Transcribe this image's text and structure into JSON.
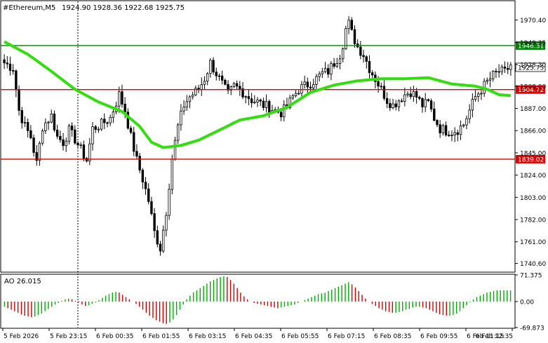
{
  "header": {
    "symbol": "#Ethereum,M5",
    "ohlc": "1924.90 1928.36 1922.68 1925.75",
    "ao_label": "AO 26.015"
  },
  "colors": {
    "bull": "#008000",
    "bear": "#000000",
    "ma": "#33dd11",
    "red_line": "#dd0000",
    "green_line": "#008000",
    "ao_up": "#00aa00",
    "ao_down": "#cc0000"
  },
  "chart_data": [
    {
      "type": "candlestick",
      "ylim": [
        1733,
        1988
      ],
      "y_ticks": [
        "1970.40",
        "1949.35",
        "1928.30",
        "1908.00",
        "1887.00",
        "1866.00",
        "1845.00",
        "1824.00",
        "1803.00",
        "1782.00",
        "1761.00",
        "1740.60"
      ],
      "y_tick_values": [
        1970.4,
        1949.35,
        1928.3,
        1908.0,
        1887.0,
        1866.0,
        1845.0,
        1824.0,
        1803.0,
        1782.0,
        1761.0,
        1740.6
      ],
      "x_ticks": [
        "5 Feb 2026",
        "5 Feb 23:15",
        "6 Feb 00:35",
        "6 Feb 01:55",
        "6 Feb 03:15",
        "6 Feb 04:35",
        "6 Feb 05:55",
        "6 Feb 07:15",
        "6 Feb 08:35",
        "6 Feb 09:55",
        "6 Feb 11:15",
        "6 Feb 12:35"
      ],
      "levels": [
        {
          "value": 1946.31,
          "label": "1946.31",
          "color": "green"
        },
        {
          "value": 1904.72,
          "label": "1904.72",
          "color": "red"
        },
        {
          "value": 1839.02,
          "label": "1839.02",
          "color": "red"
        }
      ],
      "current_price": {
        "value": 1925.75,
        "label": "1925.75"
      },
      "vertical_marker_index": 25,
      "price_path": [
        [
          0,
          1930
        ],
        [
          3,
          1925
        ],
        [
          5,
          1885
        ],
        [
          7,
          1870
        ],
        [
          9,
          1860
        ],
        [
          11,
          1835
        ],
        [
          13,
          1870
        ],
        [
          16,
          1880
        ],
        [
          18,
          1860
        ],
        [
          20,
          1855
        ],
        [
          22,
          1866
        ],
        [
          24,
          1858
        ],
        [
          26,
          1848
        ],
        [
          28,
          1838
        ],
        [
          30,
          1868
        ],
        [
          33,
          1872
        ],
        [
          36,
          1878
        ],
        [
          39,
          1900
        ],
        [
          41,
          1885
        ],
        [
          43,
          1860
        ],
        [
          45,
          1838
        ],
        [
          47,
          1820
        ],
        [
          49,
          1800
        ],
        [
          51,
          1770
        ],
        [
          53,
          1755
        ],
        [
          55,
          1790
        ],
        [
          57,
          1840
        ],
        [
          59,
          1870
        ],
        [
          61,
          1890
        ],
        [
          63,
          1898
        ],
        [
          66,
          1905
        ],
        [
          68,
          1915
        ],
        [
          70,
          1930
        ],
        [
          72,
          1920
        ],
        [
          74,
          1910
        ],
        [
          76,
          1900
        ],
        [
          78,
          1908
        ],
        [
          80,
          1905
        ],
        [
          82,
          1900
        ],
        [
          84,
          1895
        ],
        [
          86,
          1893
        ],
        [
          88,
          1890
        ],
        [
          90,
          1888
        ],
        [
          92,
          1885
        ],
        [
          94,
          1883
        ],
        [
          96,
          1888
        ],
        [
          98,
          1898
        ],
        [
          100,
          1905
        ],
        [
          102,
          1908
        ],
        [
          104,
          1911
        ],
        [
          106,
          1915
        ],
        [
          108,
          1920
        ],
        [
          110,
          1922
        ],
        [
          112,
          1930
        ],
        [
          114,
          1938
        ],
        [
          115,
          1948
        ],
        [
          116,
          1962
        ],
        [
          117,
          1967
        ],
        [
          118,
          1958
        ],
        [
          120,
          1945
        ],
        [
          122,
          1938
        ],
        [
          124,
          1925
        ],
        [
          126,
          1915
        ],
        [
          128,
          1905
        ],
        [
          130,
          1895
        ],
        [
          132,
          1890
        ],
        [
          134,
          1895
        ],
        [
          136,
          1900
        ],
        [
          138,
          1903
        ],
        [
          140,
          1898
        ],
        [
          142,
          1890
        ],
        [
          144,
          1892
        ],
        [
          146,
          1878
        ],
        [
          148,
          1868
        ],
        [
          150,
          1866
        ],
        [
          152,
          1865
        ],
        [
          154,
          1867
        ],
        [
          156,
          1872
        ],
        [
          158,
          1885
        ],
        [
          160,
          1898
        ],
        [
          162,
          1905
        ],
        [
          164,
          1912
        ],
        [
          166,
          1918
        ],
        [
          168,
          1922
        ],
        [
          170,
          1921
        ],
        [
          172,
          1928
        ]
      ],
      "ma_path": [
        [
          0,
          1950
        ],
        [
          8,
          1938
        ],
        [
          16,
          1922
        ],
        [
          24,
          1905
        ],
        [
          32,
          1893
        ],
        [
          40,
          1884
        ],
        [
          46,
          1870
        ],
        [
          50,
          1855
        ],
        [
          54,
          1850
        ],
        [
          60,
          1852
        ],
        [
          66,
          1857
        ],
        [
          72,
          1865
        ],
        [
          80,
          1876
        ],
        [
          88,
          1880
        ],
        [
          96,
          1888
        ],
        [
          104,
          1902
        ],
        [
          112,
          1909
        ],
        [
          120,
          1913
        ],
        [
          128,
          1915
        ],
        [
          136,
          1915
        ],
        [
          144,
          1916
        ],
        [
          152,
          1910
        ],
        [
          160,
          1908
        ],
        [
          164,
          1905
        ],
        [
          168,
          1900
        ],
        [
          172,
          1899
        ]
      ]
    },
    {
      "type": "bar",
      "title": "AO 26.015",
      "y_ticks": [
        "71.375",
        "0.00",
        "-69.873"
      ],
      "y_tick_values": [
        71.375,
        0.0,
        -69.873
      ],
      "ylim": [
        -69.873,
        71.375
      ],
      "values": [
        -14,
        -18,
        -22,
        -26,
        -30,
        -35,
        -38,
        -40,
        -42,
        -40,
        -36,
        -32,
        -26,
        -20,
        -14,
        -8,
        -4,
        2,
        6,
        8,
        6,
        2,
        -2,
        -8,
        -12,
        -10,
        -6,
        -2,
        4,
        10,
        16,
        20,
        24,
        26,
        24,
        18,
        12,
        6,
        0,
        -6,
        -14,
        -22,
        -30,
        -38,
        -44,
        -50,
        -54,
        -58,
        -60,
        -56,
        -48,
        -36,
        -22,
        -8,
        6,
        16,
        24,
        30,
        36,
        42,
        48,
        54,
        58,
        62,
        66,
        68,
        66,
        58,
        48,
        36,
        24,
        14,
        6,
        0,
        -4,
        -6,
        -8,
        -10,
        -12,
        -14,
        -16,
        -18,
        -16,
        -14,
        -12,
        -10,
        -8,
        -4,
        0,
        4,
        8,
        12,
        16,
        20,
        22,
        24,
        28,
        32,
        36,
        40,
        44,
        48,
        52,
        46,
        38,
        28,
        18,
        8,
        0,
        -6,
        -12,
        -18,
        -22,
        -26,
        -28,
        -30,
        -30,
        -28,
        -26,
        -22,
        -20,
        -16,
        -14,
        -14,
        -16,
        -18,
        -22,
        -26,
        -30,
        -34,
        -36,
        -38,
        -38,
        -36,
        -32,
        -26,
        -18,
        -10,
        -2,
        6,
        12,
        16,
        20,
        24,
        26,
        28,
        30,
        30,
        30,
        30,
        30
      ]
    }
  ]
}
